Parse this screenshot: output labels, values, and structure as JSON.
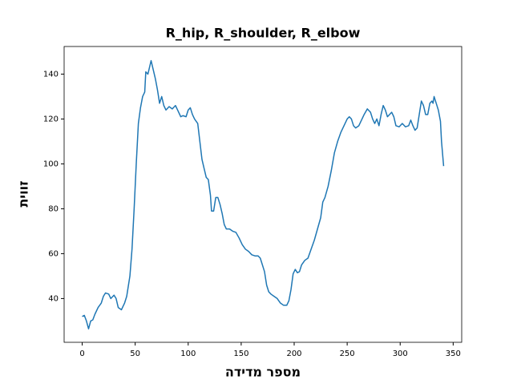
{
  "chart_data": {
    "type": "line",
    "title": "R_hip, R_shoulder, R_elbow",
    "x_label": "מספר מדידה",
    "y_label": "זווית",
    "x": [
      0,
      2,
      4,
      6,
      8,
      10,
      12,
      15,
      18,
      20,
      22,
      25,
      27,
      30,
      32,
      34,
      37,
      40,
      42,
      45,
      47,
      49,
      51,
      53,
      55,
      57,
      59,
      60,
      62,
      64,
      65,
      67,
      69,
      71,
      73,
      75,
      77,
      79,
      82,
      85,
      88,
      90,
      93,
      95,
      98,
      100,
      102,
      104,
      106,
      109,
      111,
      113,
      115,
      117,
      119,
      121,
      122,
      124,
      126,
      128,
      130,
      132,
      134,
      136,
      139,
      142,
      145,
      148,
      151,
      154,
      157,
      160,
      163,
      166,
      168,
      170,
      172,
      174,
      176,
      178,
      181,
      184,
      187,
      190,
      193,
      195,
      197,
      199,
      201,
      203,
      205,
      207,
      210,
      213,
      216,
      219,
      222,
      225,
      227,
      229,
      232,
      235,
      238,
      241,
      244,
      247,
      250,
      252,
      254,
      256,
      258,
      261,
      264,
      266,
      269,
      272,
      274,
      276,
      278,
      280,
      282,
      284,
      286,
      288,
      290,
      292,
      294,
      296,
      299,
      302,
      305,
      308,
      310,
      312,
      314,
      316,
      318,
      320,
      322,
      324,
      326,
      328,
      330,
      331,
      332,
      334,
      336,
      338,
      339,
      341
    ],
    "series": [
      {
        "name": "R_hip, R_shoulder, R_elbow",
        "color": "#1f77b4",
        "values": [
          32,
          32.5,
          30,
          26.5,
          30,
          30.5,
          33,
          36,
          38,
          41,
          42.5,
          42,
          40,
          41.5,
          40,
          36,
          35,
          38,
          41,
          50,
          62,
          80,
          100,
          118,
          125,
          130,
          132,
          141,
          140,
          144,
          146,
          142,
          138,
          133,
          127,
          130,
          126,
          124,
          125.5,
          124.5,
          126,
          124,
          121,
          121.5,
          121,
          124,
          125,
          122,
          120,
          118,
          110,
          102,
          98,
          94,
          93,
          86,
          79,
          79,
          85,
          85,
          82,
          78,
          73,
          71,
          71,
          70,
          69.5,
          67,
          64,
          62,
          61,
          59.5,
          59,
          59,
          58,
          55,
          52,
          46,
          43,
          42,
          41,
          40,
          38,
          37,
          37,
          39,
          44,
          51,
          53,
          51.5,
          52,
          55,
          57,
          58,
          62,
          66,
          71,
          76,
          83,
          85,
          90,
          97,
          105,
          110,
          114,
          117,
          120,
          121,
          120,
          117,
          116,
          117,
          120,
          122,
          124.5,
          123,
          120,
          118,
          120,
          117,
          122,
          126,
          124,
          121,
          122,
          123,
          121,
          117,
          116.5,
          118,
          116.5,
          117,
          119.5,
          117,
          115,
          116,
          122,
          128,
          126,
          122,
          122,
          127,
          128,
          127,
          130,
          127,
          124,
          119,
          110,
          99
        ]
      }
    ],
    "xlim": [
      -17.05,
      358.05
    ],
    "ylim": [
      20.5,
      152.3
    ],
    "xticks": [
      0,
      50,
      100,
      150,
      200,
      250,
      300,
      350
    ],
    "yticks": [
      40,
      60,
      80,
      100,
      120,
      140
    ]
  }
}
